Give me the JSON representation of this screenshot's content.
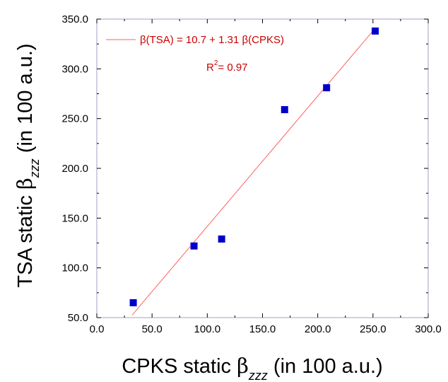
{
  "chart_data": {
    "type": "scatter",
    "xlabel": {
      "prefix": "CPKS static ",
      "symbol": "β",
      "subscript": "zzz",
      "suffix": " (in 100 a.u.)"
    },
    "ylabel": {
      "prefix": "TSA static ",
      "symbol": "β",
      "subscript": "zzz",
      "suffix": " (in 100 a.u.)"
    },
    "xlim": [
      0,
      300
    ],
    "ylim": [
      50,
      350
    ],
    "x_ticks": [
      0,
      50,
      100,
      150,
      200,
      250,
      300
    ],
    "x_tick_labels": [
      "0.0",
      "50.0",
      "100.0",
      "150.0",
      "200.0",
      "250.0",
      "300.0"
    ],
    "y_ticks": [
      50,
      100,
      150,
      200,
      250,
      300,
      350
    ],
    "y_tick_labels": [
      "50.0",
      "100.0",
      "150.0",
      "200.0",
      "250.0",
      "300.0",
      "350.0"
    ],
    "grid": false,
    "points": [
      {
        "x": 33,
        "y": 65
      },
      {
        "x": 88,
        "y": 122
      },
      {
        "x": 113,
        "y": 129
      },
      {
        "x": 170,
        "y": 259
      },
      {
        "x": 208,
        "y": 281
      },
      {
        "x": 252,
        "y": 338
      }
    ],
    "fit_line": {
      "intercept": 10.7,
      "slope": 1.31,
      "x_range": [
        32,
        252
      ],
      "label": "β(TSA) = 10.7 + 1.31 β(CPKS)",
      "r2_prefix": "R",
      "r2_sup": "2",
      "r2_suffix": "= 0.97"
    },
    "colors": {
      "points": "#0000cc",
      "fit": "#ff6060",
      "annotation": "#cc0000",
      "axis": "#000000",
      "frame": "#a0a0c8"
    }
  }
}
